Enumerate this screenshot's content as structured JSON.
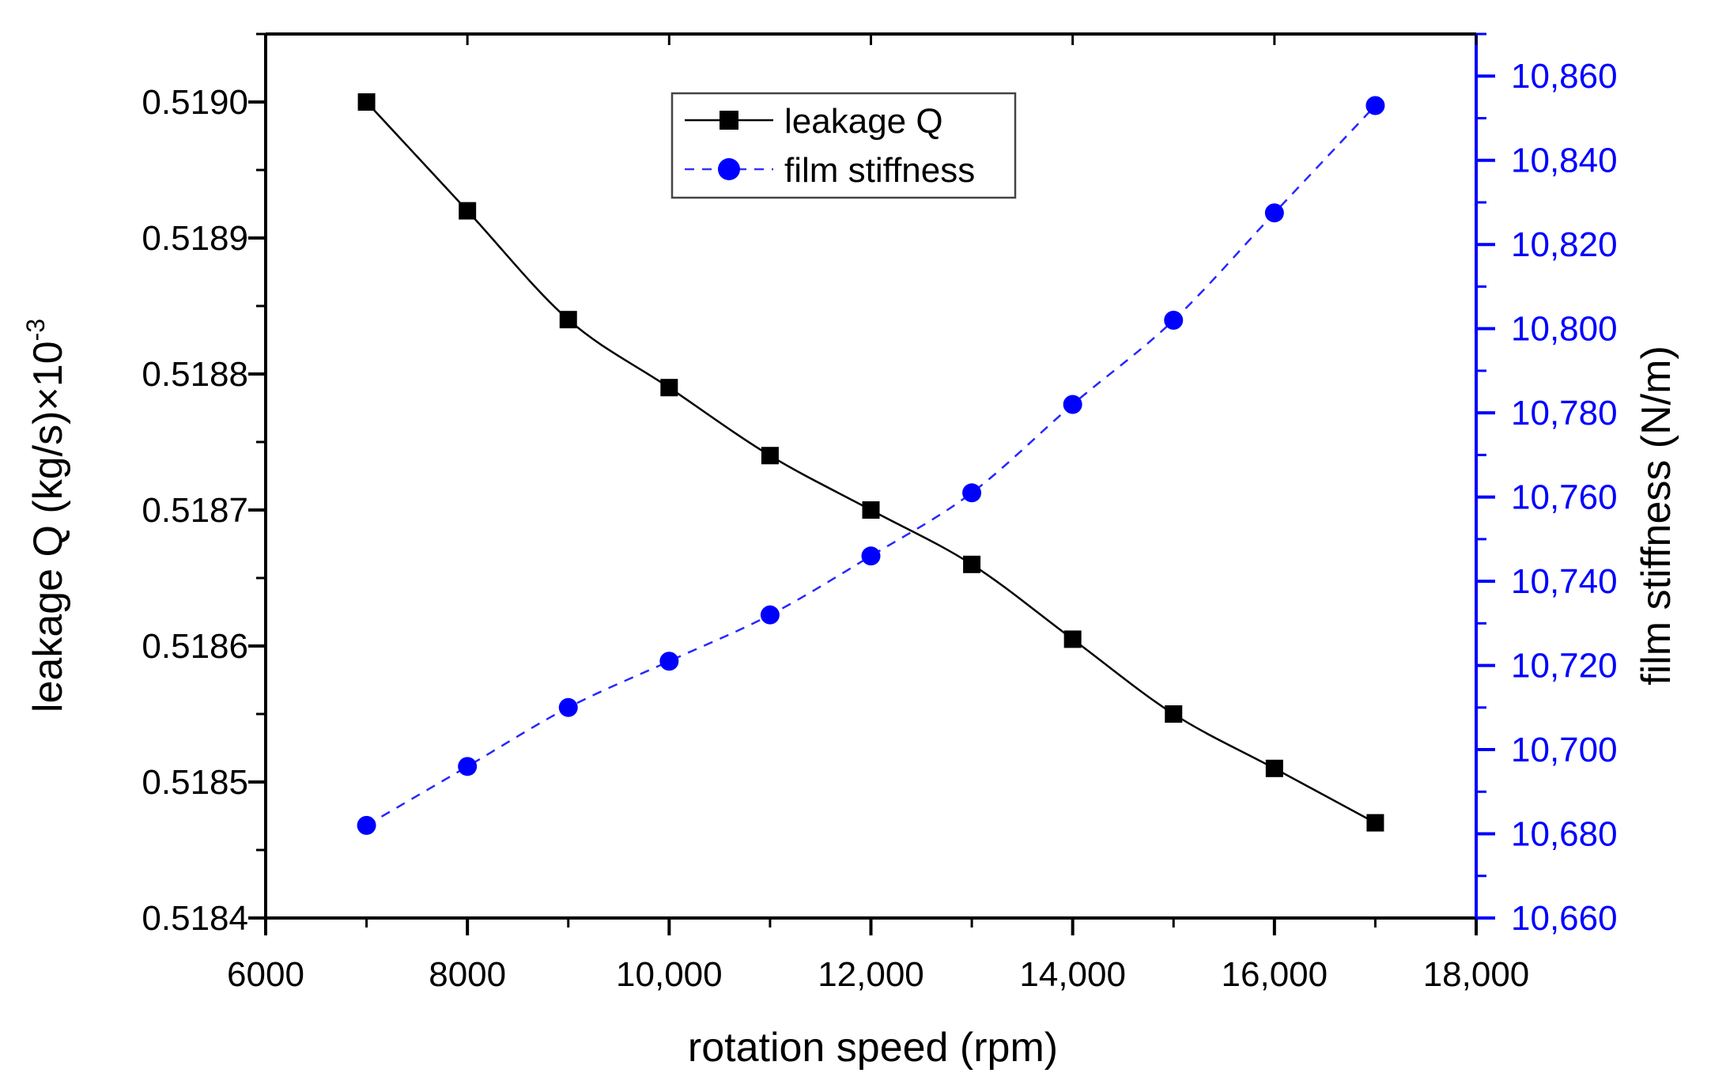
{
  "chart_data": {
    "type": "line",
    "title": "",
    "xlabel": "rotation speed (rpm)",
    "ylabel_left": "leakage Q (kg/s)×10",
    "ylabel_left_exponent": "-3",
    "ylabel_right": "film stiffness (N/m)",
    "xlim": [
      6000,
      18000
    ],
    "ylim_left": [
      0.5184,
      0.51905
    ],
    "ylim_right": [
      10660,
      10870
    ],
    "x_ticks": [
      6000,
      8000,
      10000,
      12000,
      14000,
      16000,
      18000
    ],
    "x_tick_labels": [
      "6000",
      "8000",
      "10,000",
      "12,000",
      "14,000",
      "16,000",
      "18,000"
    ],
    "y_left_ticks": [
      0.5184,
      0.5185,
      0.5186,
      0.5187,
      0.5188,
      0.5189,
      0.519
    ],
    "y_left_tick_labels": [
      "0.5184",
      "0.5185",
      "0.5186",
      "0.5187",
      "0.5188",
      "0.5189",
      "0.5190"
    ],
    "y_right_ticks": [
      10660,
      10680,
      10700,
      10720,
      10740,
      10760,
      10780,
      10800,
      10820,
      10840,
      10860
    ],
    "y_right_tick_labels": [
      "10,660",
      "10,680",
      "10,700",
      "10,720",
      "10,740",
      "10,760",
      "10,780",
      "10,800",
      "10,820",
      "10,840",
      "10,860"
    ],
    "grid": false,
    "legend_position": "top-center",
    "x": [
      7000,
      8000,
      9000,
      10000,
      11000,
      12000,
      13000,
      14000,
      15000,
      16000,
      17000
    ],
    "series": [
      {
        "name": "leakage Q",
        "axis": "left",
        "color": "#000000",
        "marker": "square",
        "line": "solid",
        "values": [
          0.519,
          0.51892,
          0.51884,
          0.51879,
          0.51874,
          0.5187,
          0.51866,
          0.518605,
          0.51855,
          0.51851,
          0.51847
        ]
      },
      {
        "name": "film stiffness",
        "axis": "right",
        "color": "#0000ff",
        "marker": "circle",
        "line": "dashed",
        "values": [
          10682,
          10696,
          10710,
          10721,
          10732,
          10746,
          10761,
          10782,
          10802,
          10827.5,
          10853
        ]
      }
    ],
    "right_axis_color": "#0000ff"
  }
}
